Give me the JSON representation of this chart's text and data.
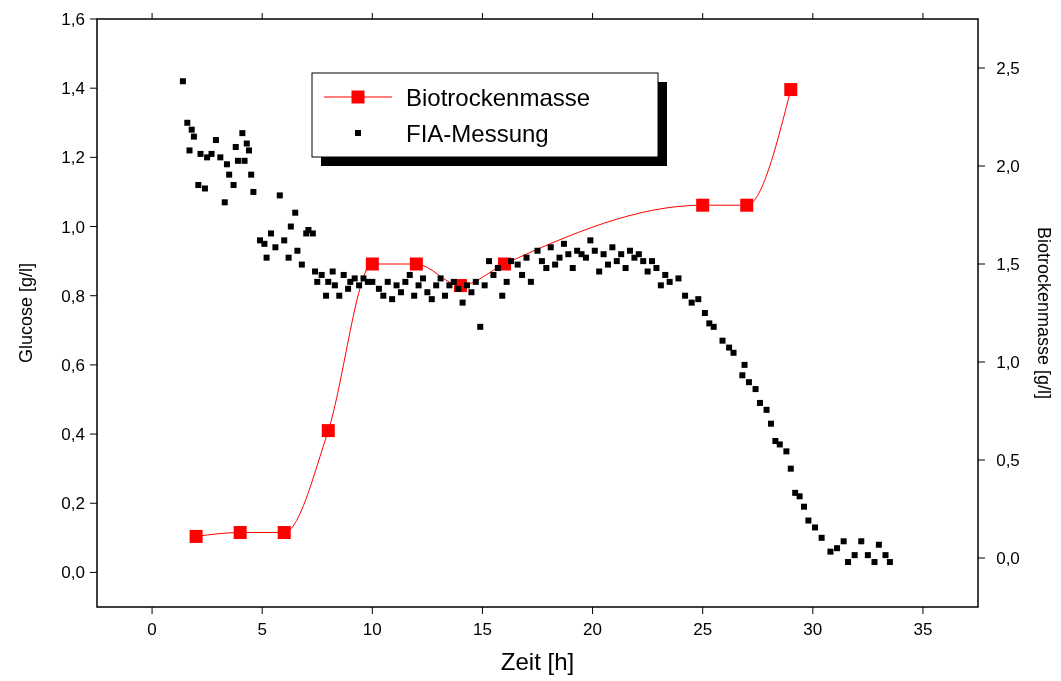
{
  "chart_data": {
    "type": "scatter",
    "xlabel": "Zeit [h]",
    "ylabel": "Glucose [g/l]",
    "y2label": "Biotrockenmasse [g/l]",
    "xlim": [
      -2.5,
      37.5
    ],
    "xticks": [
      0,
      5,
      10,
      15,
      20,
      25,
      30,
      35
    ],
    "ylim": [
      -0.1,
      1.6
    ],
    "yticks": [
      {
        "value": 0,
        "label": "0,0"
      },
      {
        "value": 0.2,
        "label": "0,2"
      },
      {
        "value": 0.4,
        "label": "0,4"
      },
      {
        "value": 0.6,
        "label": "0,6"
      },
      {
        "value": 0.8,
        "label": "0,8"
      },
      {
        "value": 1.0,
        "label": "1,0"
      },
      {
        "value": 1.2,
        "label": "1,2"
      },
      {
        "value": 1.4,
        "label": "1,4"
      },
      {
        "value": 1.6,
        "label": "1,6"
      }
    ],
    "y2lim": [
      -0.25,
      2.75
    ],
    "y2ticks": [
      {
        "value": 0,
        "label": "0,0"
      },
      {
        "value": 0.5,
        "label": "0,5"
      },
      {
        "value": 1.0,
        "label": "1,0"
      },
      {
        "value": 1.5,
        "label": "1,5"
      },
      {
        "value": 2.0,
        "label": "2,0"
      },
      {
        "value": 2.5,
        "label": "2,5"
      }
    ],
    "legend": "top",
    "grid": false,
    "series": [
      {
        "name": "Biotrockenmasse",
        "type": "line",
        "axis": "y2",
        "color": "#ff0000",
        "marker": "square",
        "x": [
          2,
          4,
          6,
          8,
          10,
          12,
          14,
          16,
          25,
          27,
          29
        ],
        "values": [
          0.11,
          0.13,
          0.13,
          0.65,
          1.5,
          1.5,
          1.39,
          1.5,
          1.8,
          1.8,
          2.39
        ]
      },
      {
        "name": "FIA-Messung",
        "axis": "y",
        "color": "#000000",
        "marker": "square",
        "x": [
          1.4,
          1.6,
          1.7,
          1.8,
          1.9,
          2.1,
          2.2,
          2.4,
          2.5,
          2.7,
          2.9,
          3.1,
          3.3,
          3.4,
          3.5,
          3.7,
          3.8,
          3.9,
          4.1,
          4.2,
          4.3,
          4.4,
          4.5,
          4.6,
          4.9,
          5.1,
          5.2,
          5.4,
          5.6,
          5.8,
          6.0,
          6.2,
          6.3,
          6.5,
          6.6,
          6.8,
          7.0,
          7.1,
          7.3,
          7.4,
          7.5,
          7.7,
          7.9,
          8.0,
          8.2,
          8.3,
          8.5,
          8.7,
          8.9,
          9.0,
          9.2,
          9.4,
          9.6,
          9.8,
          10.0,
          10.3,
          10.5,
          10.7,
          10.9,
          11.1,
          11.3,
          11.5,
          11.7,
          11.9,
          12.1,
          12.3,
          12.5,
          12.7,
          12.9,
          13.1,
          13.3,
          13.5,
          13.7,
          13.9,
          14.1,
          14.3,
          14.5,
          14.7,
          14.9,
          15.1,
          15.3,
          15.5,
          15.7,
          15.9,
          16.1,
          16.3,
          16.6,
          16.8,
          17.0,
          17.2,
          17.5,
          17.7,
          17.9,
          18.1,
          18.3,
          18.5,
          18.7,
          18.9,
          19.1,
          19.3,
          19.5,
          19.7,
          19.9,
          20.1,
          20.3,
          20.5,
          20.7,
          20.9,
          21.1,
          21.3,
          21.5,
          21.7,
          21.9,
          22.1,
          22.3,
          22.5,
          22.7,
          22.9,
          23.1,
          23.3,
          23.5,
          23.9,
          24.2,
          24.5,
          24.8,
          25.1,
          25.3,
          25.5,
          25.9,
          26.2,
          26.4,
          26.8,
          26.9,
          27.1,
          27.4,
          27.6,
          27.9,
          28.1,
          28.3,
          28.5,
          28.8,
          29.0,
          29.2,
          29.4,
          29.6,
          29.8,
          30.1,
          30.4,
          30.8,
          31.1,
          31.4,
          31.6,
          31.9,
          32.2,
          32.5,
          32.8,
          33.0,
          33.3,
          33.5
        ],
        "values": [
          1.42,
          1.3,
          1.22,
          1.28,
          1.26,
          1.12,
          1.21,
          1.11,
          1.2,
          1.21,
          1.25,
          1.2,
          1.07,
          1.18,
          1.15,
          1.12,
          1.23,
          1.19,
          1.27,
          1.19,
          1.24,
          1.22,
          1.15,
          1.1,
          0.96,
          0.95,
          0.91,
          0.98,
          0.94,
          1.09,
          0.96,
          0.91,
          1.0,
          1.04,
          0.93,
          0.89,
          0.98,
          0.99,
          0.98,
          0.87,
          0.84,
          0.86,
          0.8,
          0.84,
          0.87,
          0.83,
          0.8,
          0.86,
          0.82,
          0.84,
          0.85,
          0.83,
          0.85,
          0.84,
          0.84,
          0.82,
          0.8,
          0.84,
          0.79,
          0.83,
          0.81,
          0.84,
          0.86,
          0.8,
          0.83,
          0.85,
          0.81,
          0.79,
          0.83,
          0.85,
          0.8,
          0.83,
          0.84,
          0.82,
          0.78,
          0.83,
          0.81,
          0.84,
          0.71,
          0.83,
          0.9,
          0.86,
          0.88,
          0.8,
          0.84,
          0.9,
          0.89,
          0.86,
          0.91,
          0.84,
          0.93,
          0.9,
          0.88,
          0.94,
          0.89,
          0.91,
          0.95,
          0.92,
          0.88,
          0.93,
          0.92,
          0.91,
          0.96,
          0.93,
          0.87,
          0.92,
          0.89,
          0.94,
          0.9,
          0.92,
          0.88,
          0.93,
          0.91,
          0.92,
          0.9,
          0.87,
          0.9,
          0.88,
          0.83,
          0.86,
          0.84,
          0.85,
          0.8,
          0.78,
          0.79,
          0.75,
          0.72,
          0.71,
          0.67,
          0.65,
          0.635,
          0.57,
          0.6,
          0.55,
          0.53,
          0.49,
          0.47,
          0.43,
          0.38,
          0.37,
          0.35,
          0.3,
          0.23,
          0.22,
          0.19,
          0.15,
          0.13,
          0.1,
          0.06,
          0.07,
          0.09,
          0.03,
          0.05,
          0.09,
          0.05,
          0.03,
          0.08,
          0.05,
          0.03
        ]
      }
    ]
  }
}
